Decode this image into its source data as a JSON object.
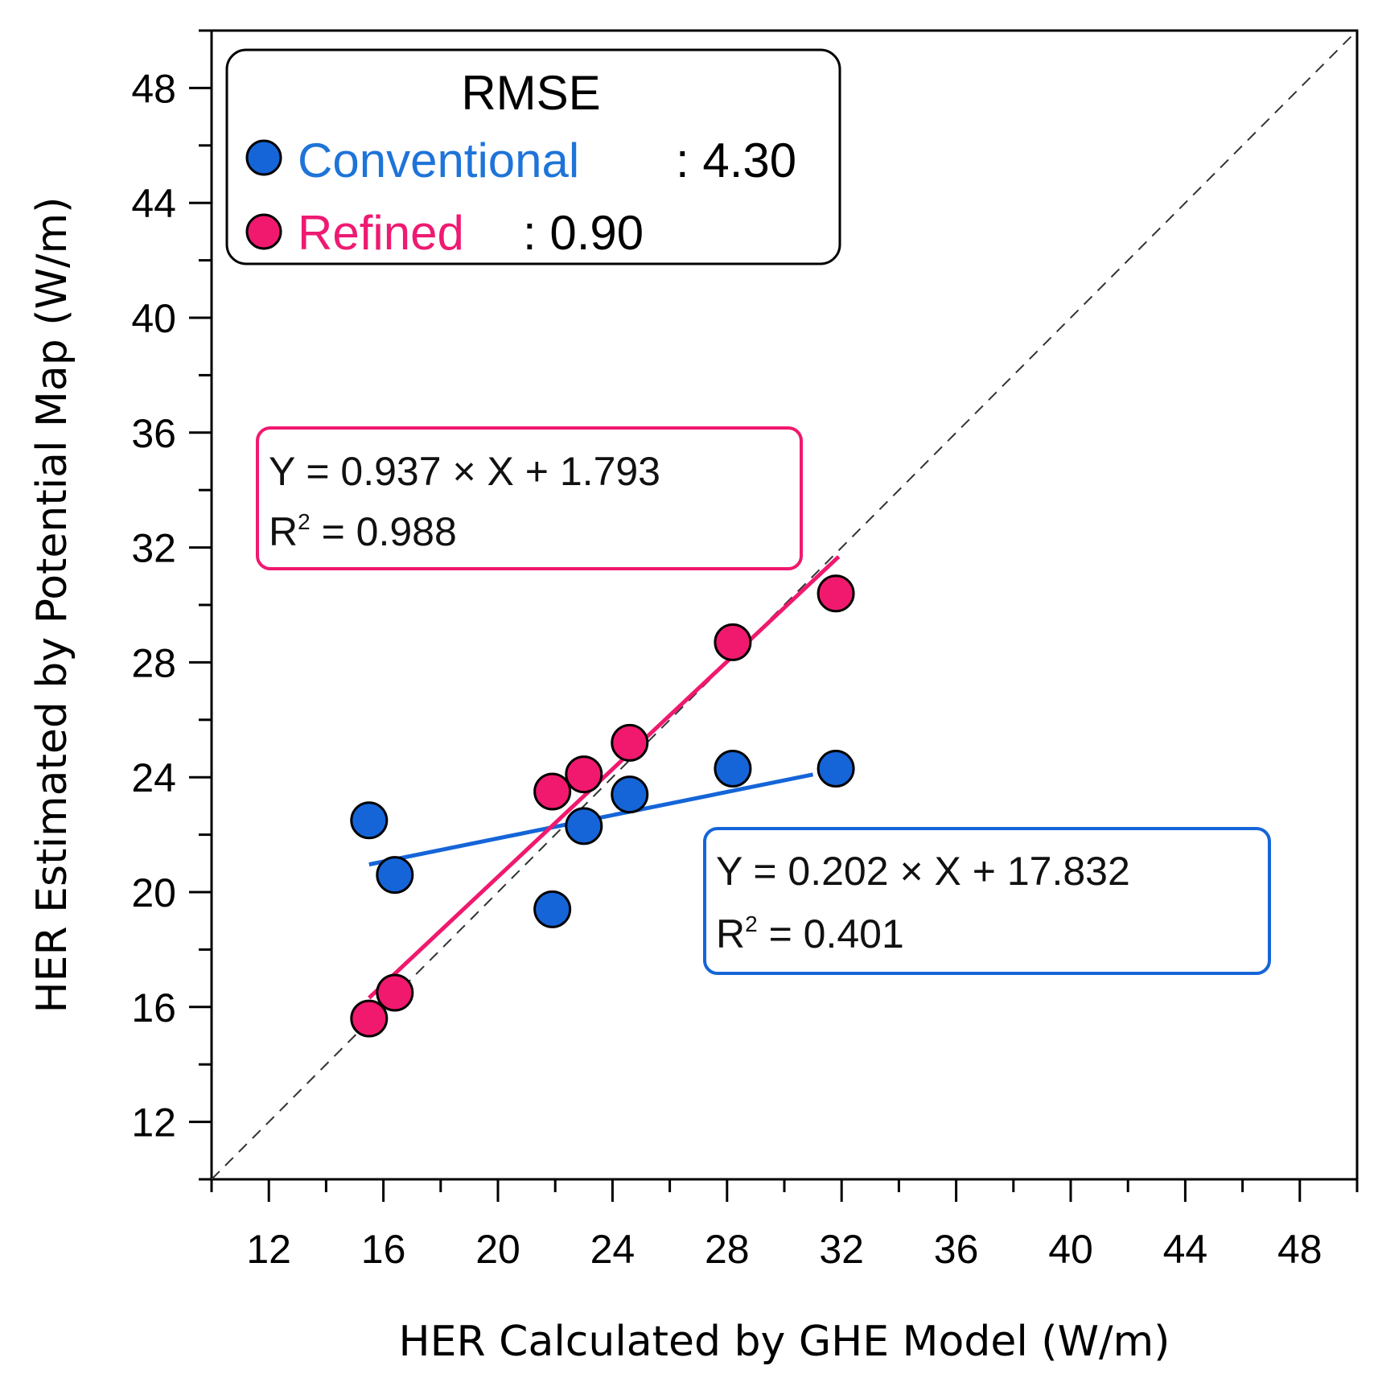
{
  "chart_data": {
    "type": "scatter",
    "xlabel": "HER Calculated by GHE Model (W/m)",
    "ylabel": "HER Estimated by Potential Map (W/m)",
    "xlim": [
      10,
      50
    ],
    "ylim": [
      10,
      50
    ],
    "major_ticks": [
      12,
      16,
      20,
      24,
      28,
      32,
      36,
      40,
      44,
      48
    ],
    "minor_step": 2,
    "one_to_one_line": true,
    "colors": {
      "conventional": "#1565d8",
      "refined": "#f0196e",
      "conventional_text": "#1e74d8",
      "refined_text": "#ee1a72"
    },
    "series": [
      {
        "name": "Conventional",
        "key": "conventional",
        "points": [
          {
            "x": 15.5,
            "y": 22.5
          },
          {
            "x": 16.4,
            "y": 20.6
          },
          {
            "x": 21.9,
            "y": 19.4
          },
          {
            "x": 23.0,
            "y": 22.3
          },
          {
            "x": 24.6,
            "y": 23.4
          },
          {
            "x": 28.2,
            "y": 24.3
          },
          {
            "x": 31.8,
            "y": 24.3
          }
        ],
        "fit": {
          "x_range": [
            15.5,
            31.0
          ],
          "slope": 0.202,
          "intercept": 17.832
        }
      },
      {
        "name": "Refined",
        "key": "refined",
        "points": [
          {
            "x": 15.5,
            "y": 15.6
          },
          {
            "x": 16.4,
            "y": 16.5
          },
          {
            "x": 21.9,
            "y": 23.5
          },
          {
            "x": 23.0,
            "y": 24.1
          },
          {
            "x": 24.6,
            "y": 25.2
          },
          {
            "x": 28.2,
            "y": 28.7
          },
          {
            "x": 31.8,
            "y": 30.4
          }
        ],
        "fit": {
          "x_range": [
            15.5,
            31.9
          ],
          "slope": 0.937,
          "intercept": 1.793
        }
      }
    ]
  },
  "legend": {
    "title": "RMSE",
    "conventional_label": "Conventional",
    "conventional_value": ": 4.30",
    "refined_label": "Refined",
    "refined_value": ": 0.90"
  },
  "equations": {
    "refined_eq": "Y = 0.937 × X + 1.793",
    "refined_r2_prefix": "R",
    "refined_r2_sup": "2",
    "refined_r2_rest": " = 0.988",
    "conventional_eq": "Y = 0.202 × X + 17.832",
    "conventional_r2_prefix": "R",
    "conventional_r2_sup": "2",
    "conventional_r2_rest": " = 0.401"
  }
}
